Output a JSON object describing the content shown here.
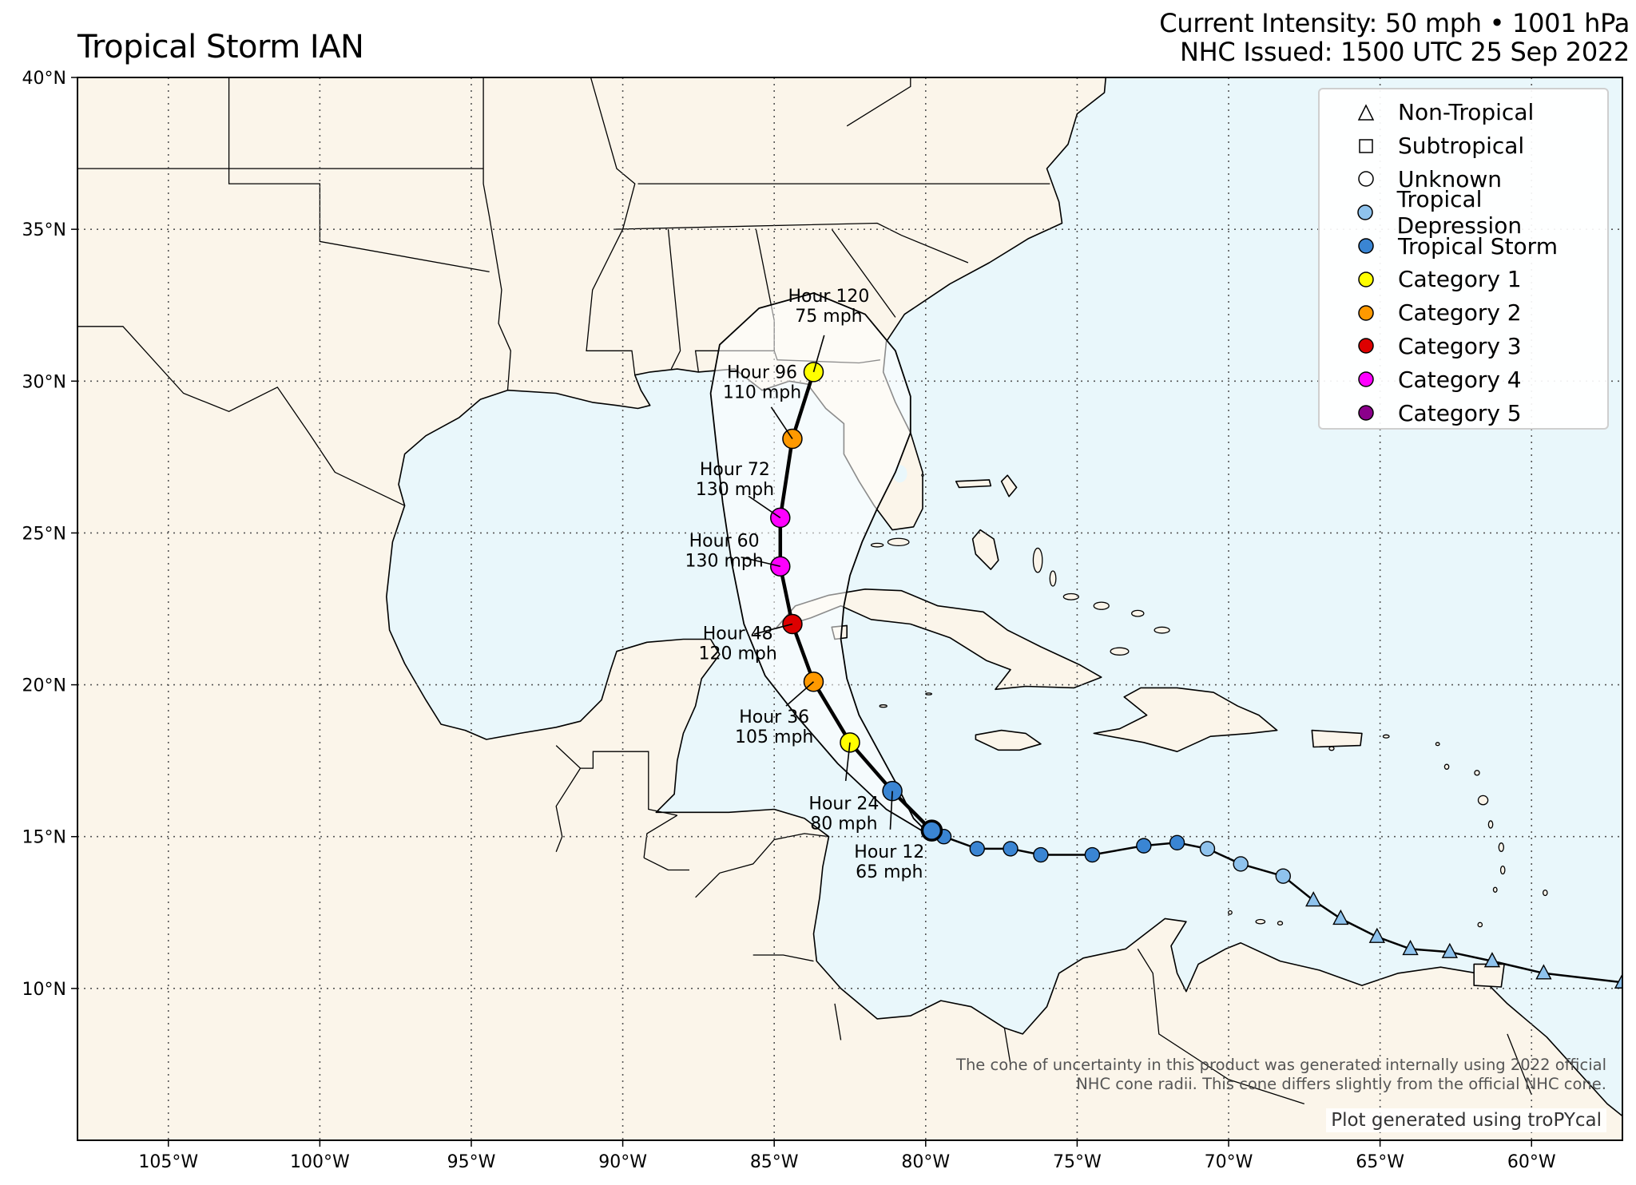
{
  "title": "Tropical Storm IAN",
  "info": {
    "line1": "Current Intensity: 50 mph • 1001 hPa",
    "line2": "NHC Issued: 1500 UTC 25 Sep 2022"
  },
  "map": {
    "lon_range": [
      -108,
      -57
    ],
    "lat_range": [
      5,
      40
    ],
    "lat_ticks": [
      40,
      35,
      30,
      25,
      20,
      15,
      10
    ],
    "lat_labels": [
      "40°N",
      "35°N",
      "30°N",
      "25°N",
      "20°N",
      "15°N",
      "10°N"
    ],
    "lon_ticks": [
      -105,
      -100,
      -95,
      -90,
      -85,
      -80,
      -75,
      -70,
      -65,
      -60
    ],
    "lon_labels": [
      "105°W",
      "100°W",
      "95°W",
      "90°W",
      "85°W",
      "80°W",
      "75°W",
      "70°W",
      "65°W",
      "60°W"
    ],
    "colors": {
      "ocean": "#e9f7fb",
      "land": "#fbf5ea",
      "border": "#000000",
      "grid": "#555555",
      "cone": "#ffffff"
    }
  },
  "legend": [
    {
      "label": "Non-Tropical",
      "symbol": "triangle",
      "color": "#ffffff"
    },
    {
      "label": "Subtropical",
      "symbol": "square",
      "color": "#ffffff"
    },
    {
      "label": "Unknown",
      "symbol": "circle",
      "color": "#ffffff"
    },
    {
      "label": "Tropical Depression",
      "symbol": "circle",
      "color": "#8fc3ed"
    },
    {
      "label": "Tropical Storm",
      "symbol": "circle",
      "color": "#3a85d3"
    },
    {
      "label": "Category 1",
      "symbol": "circle",
      "color": "#ffff00"
    },
    {
      "label": "Category 2",
      "symbol": "circle",
      "color": "#ff9900"
    },
    {
      "label": "Category 3",
      "symbol": "circle",
      "color": "#dd0000"
    },
    {
      "label": "Category 4",
      "symbol": "circle",
      "color": "#ff00ff"
    },
    {
      "label": "Category 5",
      "symbol": "circle",
      "color": "#8b008b"
    }
  ],
  "past_track": [
    {
      "lon": -57.0,
      "lat": 10.2,
      "type": "triangle",
      "color": "#8fc3ed"
    },
    {
      "lon": -59.6,
      "lat": 10.5,
      "type": "triangle",
      "color": "#8fc3ed"
    },
    {
      "lon": -61.3,
      "lat": 10.9,
      "type": "triangle",
      "color": "#8fc3ed"
    },
    {
      "lon": -62.7,
      "lat": 11.2,
      "type": "triangle",
      "color": "#8fc3ed"
    },
    {
      "lon": -64.0,
      "lat": 11.3,
      "type": "triangle",
      "color": "#8fc3ed"
    },
    {
      "lon": -65.1,
      "lat": 11.7,
      "type": "triangle",
      "color": "#8fc3ed"
    },
    {
      "lon": -66.3,
      "lat": 12.3,
      "type": "triangle",
      "color": "#8fc3ed"
    },
    {
      "lon": -67.2,
      "lat": 12.9,
      "type": "triangle",
      "color": "#8fc3ed"
    },
    {
      "lon": -68.2,
      "lat": 13.7,
      "type": "circle",
      "color": "#8fc3ed"
    },
    {
      "lon": -69.6,
      "lat": 14.1,
      "type": "circle",
      "color": "#8fc3ed"
    },
    {
      "lon": -70.7,
      "lat": 14.6,
      "type": "circle",
      "color": "#8fc3ed"
    },
    {
      "lon": -71.7,
      "lat": 14.8,
      "type": "circle",
      "color": "#3a85d3"
    },
    {
      "lon": -72.8,
      "lat": 14.7,
      "type": "circle",
      "color": "#3a85d3"
    },
    {
      "lon": -74.5,
      "lat": 14.4,
      "type": "circle",
      "color": "#3a85d3"
    },
    {
      "lon": -76.2,
      "lat": 14.4,
      "type": "circle",
      "color": "#3a85d3"
    },
    {
      "lon": -77.2,
      "lat": 14.6,
      "type": "circle",
      "color": "#3a85d3"
    },
    {
      "lon": -78.3,
      "lat": 14.6,
      "type": "circle",
      "color": "#3a85d3"
    },
    {
      "lon": -79.4,
      "lat": 15.0,
      "type": "circle",
      "color": "#3a85d3"
    }
  ],
  "current_position": {
    "lon": -79.8,
    "lat": 15.2,
    "color": "#3a85d3"
  },
  "forecast": [
    {
      "hour": "Hour 12",
      "intensity": "65 mph",
      "lon": -81.1,
      "lat": 16.5,
      "color": "#3a85d3"
    },
    {
      "hour": "Hour 24",
      "intensity": "80 mph",
      "lon": -82.5,
      "lat": 18.1,
      "color": "#ffff00"
    },
    {
      "hour": "Hour 36",
      "intensity": "105 mph",
      "lon": -83.7,
      "lat": 20.1,
      "color": "#ff9900"
    },
    {
      "hour": "Hour 48",
      "intensity": "120 mph",
      "lon": -84.4,
      "lat": 22.0,
      "color": "#dd0000"
    },
    {
      "hour": "Hour 60",
      "intensity": "130 mph",
      "lon": -84.8,
      "lat": 23.9,
      "color": "#ff00ff"
    },
    {
      "hour": "Hour 72",
      "intensity": "130 mph",
      "lon": -84.8,
      "lat": 25.5,
      "color": "#ff00ff"
    },
    {
      "hour": "Hour 96",
      "intensity": "110 mph",
      "lon": -84.4,
      "lat": 28.1,
      "color": "#ff9900"
    },
    {
      "hour": "Hour 120",
      "intensity": "75 mph",
      "lon": -83.7,
      "lat": 30.3,
      "color": "#ffff00"
    }
  ],
  "note": {
    "line1": "The cone of uncertainty in this product was generated internally using 2022 official",
    "line2": "NHC cone radii. This cone differs slightly from the official NHC cone."
  },
  "credit": "Plot generated using troPYcal"
}
